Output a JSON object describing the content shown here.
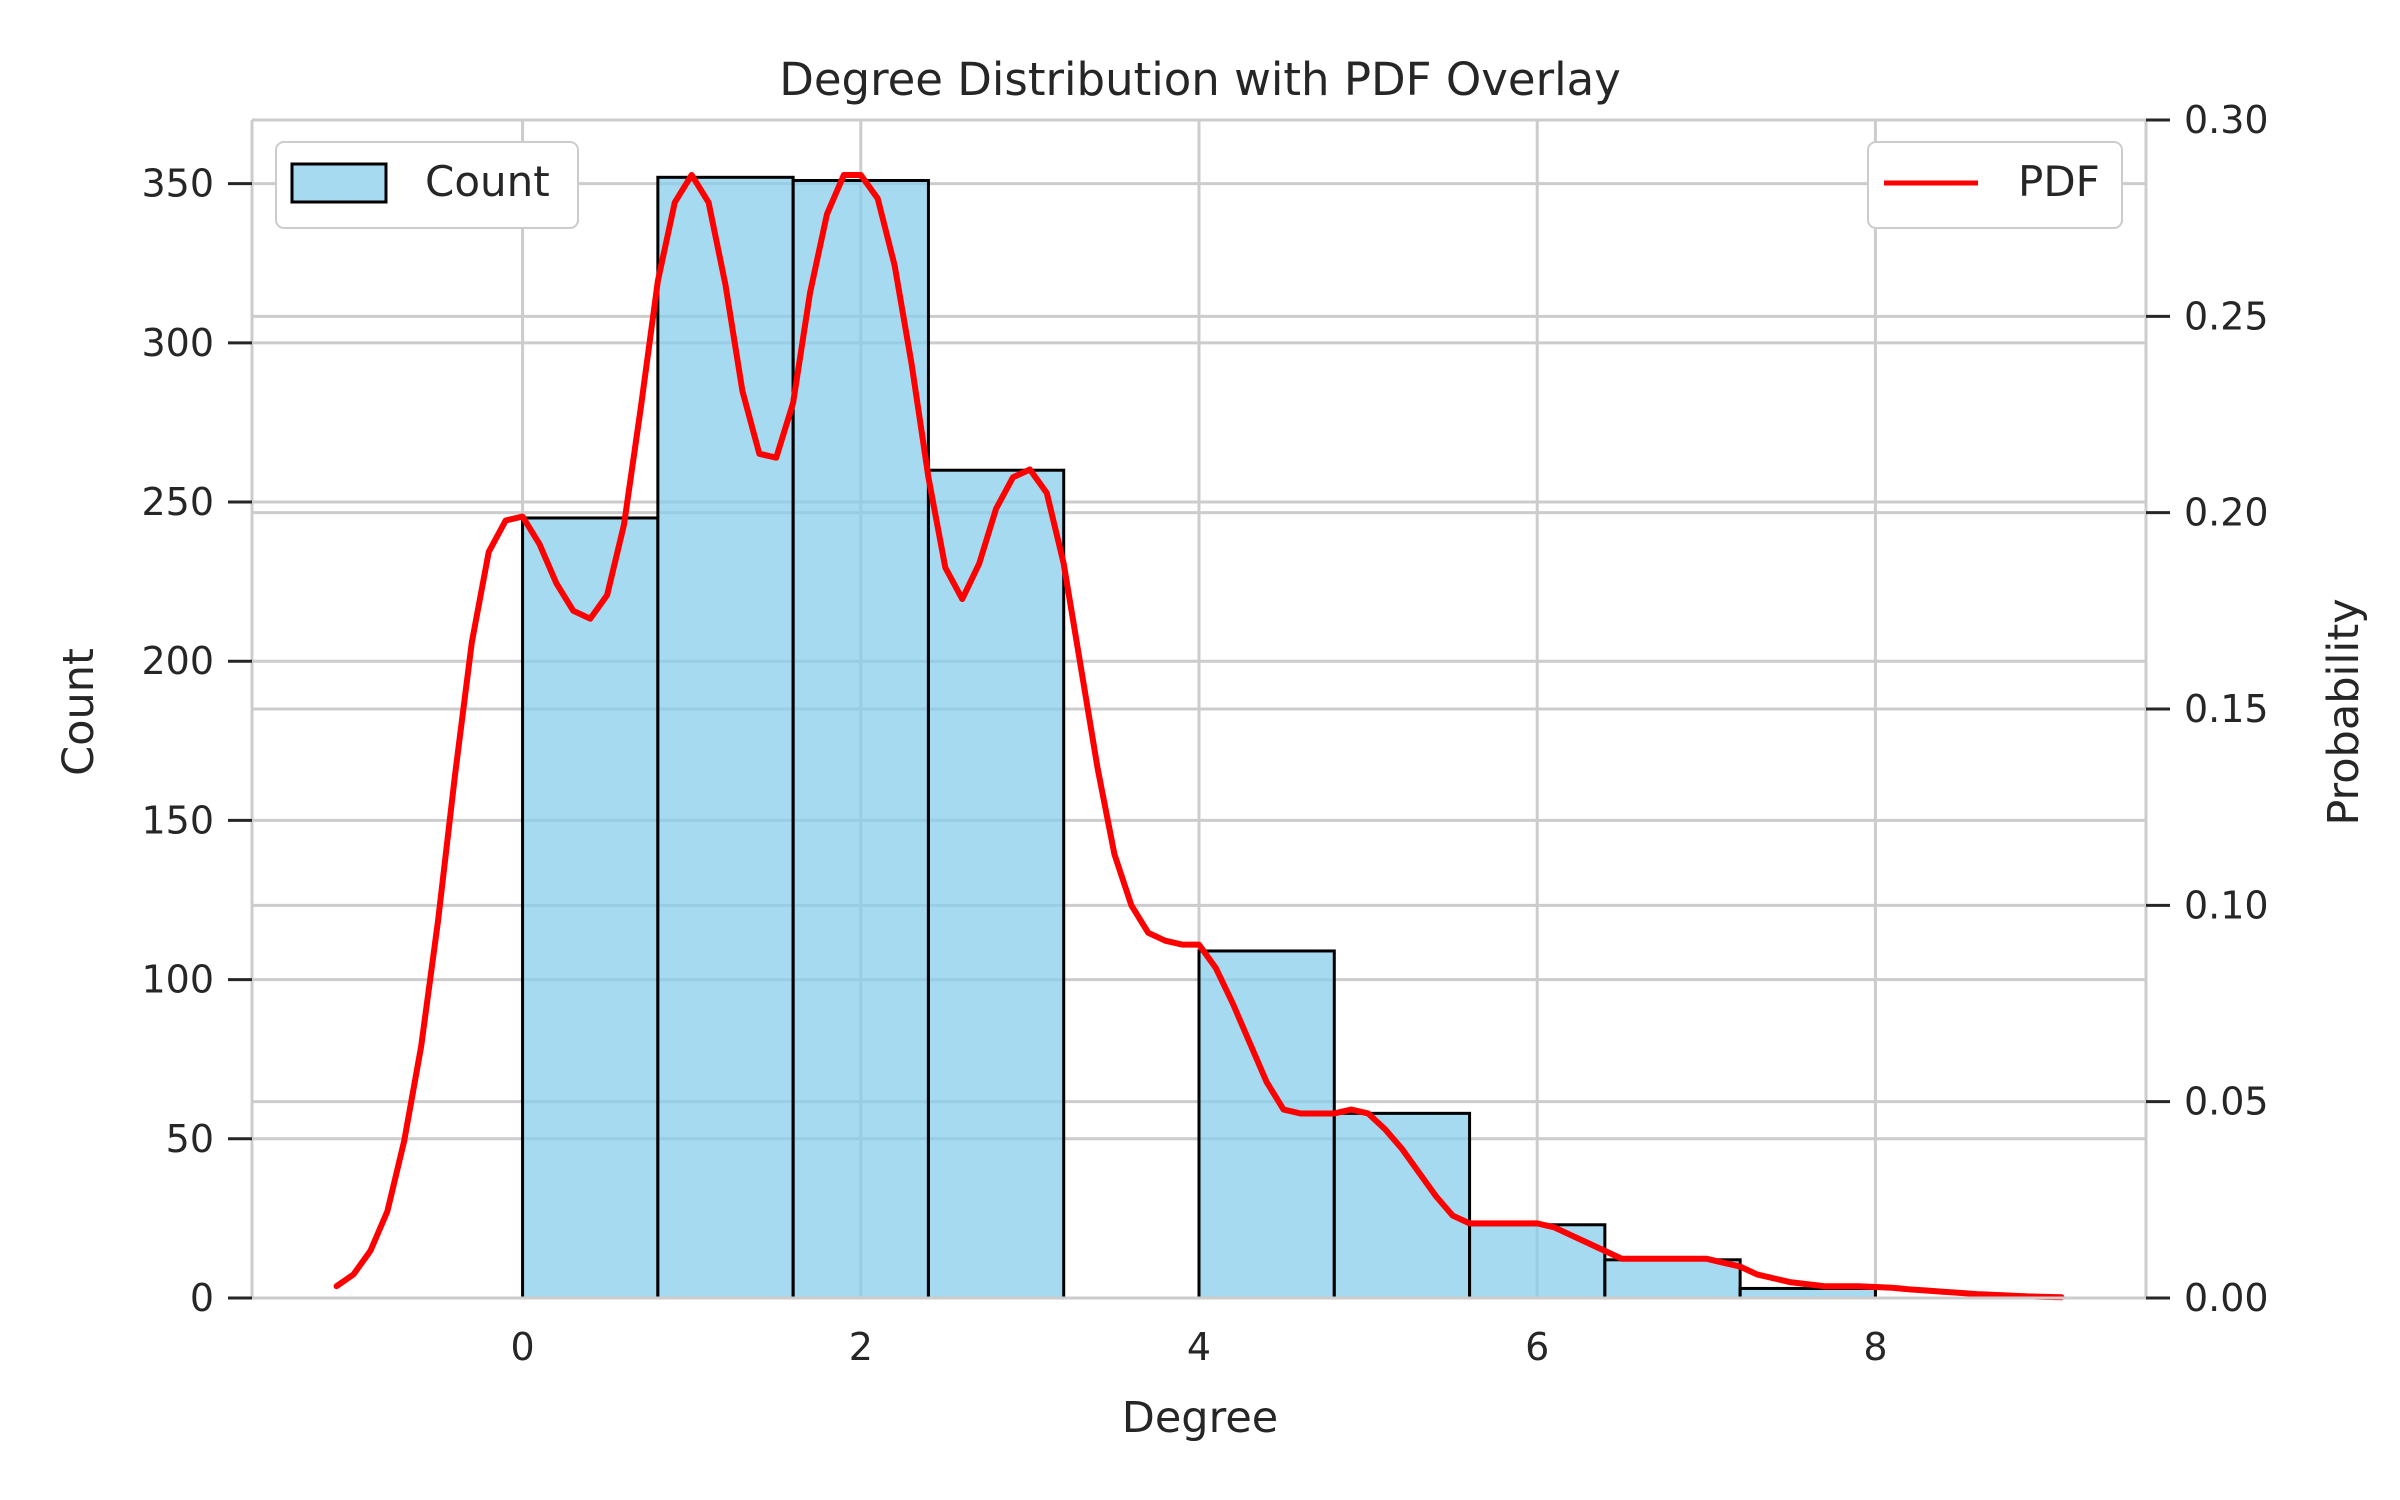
{
  "chart_data": {
    "type": "bar",
    "title": "Degree Distribution with PDF Overlay",
    "xlabel": "Degree",
    "ylabel": "Count",
    "y2label": "Probability",
    "xlim": [
      -1.6,
      9.6
    ],
    "ylim": [
      0,
      370
    ],
    "y2lim": [
      0,
      0.3
    ],
    "x_ticks": [
      0,
      2,
      4,
      6,
      8
    ],
    "y_ticks": [
      0,
      50,
      100,
      150,
      200,
      250,
      300,
      350
    ],
    "y2_ticks": [
      0.0,
      0.05,
      0.1,
      0.15,
      0.2,
      0.25,
      0.3
    ],
    "x_tick_labels": [
      "0",
      "2",
      "4",
      "6",
      "8"
    ],
    "y_tick_labels": [
      "0",
      "50",
      "100",
      "150",
      "200",
      "250",
      "300",
      "350"
    ],
    "y2_tick_labels": [
      "0.00",
      "0.05",
      "0.10",
      "0.15",
      "0.20",
      "0.25",
      "0.30"
    ],
    "grid": true,
    "bins": [
      {
        "start": 0.0,
        "end": 0.8,
        "count": 245
      },
      {
        "start": 0.8,
        "end": 1.6,
        "count": 352
      },
      {
        "start": 1.6,
        "end": 2.4,
        "count": 351
      },
      {
        "start": 2.4,
        "end": 3.2,
        "count": 260
      },
      {
        "start": 3.2,
        "end": 4.0,
        "count": 0
      },
      {
        "start": 4.0,
        "end": 4.8,
        "count": 109
      },
      {
        "start": 4.8,
        "end": 5.6,
        "count": 58
      },
      {
        "start": 5.6,
        "end": 6.4,
        "count": 23
      },
      {
        "start": 6.4,
        "end": 7.2,
        "count": 12
      },
      {
        "start": 7.2,
        "end": 8.0,
        "count": 3
      }
    ],
    "series": [
      {
        "name": "Count",
        "kind": "bar",
        "color": "#87CEEB",
        "edgecolor": "#000000",
        "legend_position": "upper-left"
      },
      {
        "name": "PDF",
        "kind": "line",
        "color": "#FF0000",
        "legend_position": "upper-right",
        "points": [
          [
            -1.1,
            0.003
          ],
          [
            -1.0,
            0.006
          ],
          [
            -0.9,
            0.012
          ],
          [
            -0.8,
            0.022
          ],
          [
            -0.7,
            0.04
          ],
          [
            -0.6,
            0.064
          ],
          [
            -0.5,
            0.096
          ],
          [
            -0.4,
            0.133
          ],
          [
            -0.3,
            0.167
          ],
          [
            -0.2,
            0.19
          ],
          [
            -0.1,
            0.198
          ],
          [
            0.0,
            0.199
          ],
          [
            0.1,
            0.192
          ],
          [
            0.2,
            0.182
          ],
          [
            0.3,
            0.175
          ],
          [
            0.4,
            0.173
          ],
          [
            0.5,
            0.179
          ],
          [
            0.6,
            0.197
          ],
          [
            0.7,
            0.227
          ],
          [
            0.8,
            0.259
          ],
          [
            0.9,
            0.279
          ],
          [
            1.0,
            0.286
          ],
          [
            1.1,
            0.279
          ],
          [
            1.2,
            0.258
          ],
          [
            1.3,
            0.231
          ],
          [
            1.4,
            0.215
          ],
          [
            1.5,
            0.214
          ],
          [
            1.6,
            0.228
          ],
          [
            1.7,
            0.256
          ],
          [
            1.8,
            0.276
          ],
          [
            1.9,
            0.286
          ],
          [
            2.0,
            0.286
          ],
          [
            2.1,
            0.28
          ],
          [
            2.2,
            0.263
          ],
          [
            2.3,
            0.238
          ],
          [
            2.4,
            0.209
          ],
          [
            2.5,
            0.186
          ],
          [
            2.6,
            0.178
          ],
          [
            2.7,
            0.187
          ],
          [
            2.8,
            0.201
          ],
          [
            2.9,
            0.209
          ],
          [
            3.0,
            0.211
          ],
          [
            3.1,
            0.205
          ],
          [
            3.2,
            0.187
          ],
          [
            3.3,
            0.161
          ],
          [
            3.4,
            0.135
          ],
          [
            3.5,
            0.113
          ],
          [
            3.6,
            0.1
          ],
          [
            3.7,
            0.093
          ],
          [
            3.8,
            0.091
          ],
          [
            3.9,
            0.09
          ],
          [
            4.0,
            0.09
          ],
          [
            4.1,
            0.084
          ],
          [
            4.2,
            0.075
          ],
          [
            4.3,
            0.065
          ],
          [
            4.4,
            0.055
          ],
          [
            4.5,
            0.048
          ],
          [
            4.6,
            0.047
          ],
          [
            4.7,
            0.047
          ],
          [
            4.8,
            0.047
          ],
          [
            4.9,
            0.048
          ],
          [
            5.0,
            0.047
          ],
          [
            5.1,
            0.043
          ],
          [
            5.2,
            0.038
          ],
          [
            5.3,
            0.032
          ],
          [
            5.4,
            0.026
          ],
          [
            5.5,
            0.021
          ],
          [
            5.6,
            0.019
          ],
          [
            5.7,
            0.019
          ],
          [
            5.8,
            0.019
          ],
          [
            5.9,
            0.019
          ],
          [
            6.0,
            0.019
          ],
          [
            6.1,
            0.018
          ],
          [
            6.2,
            0.016
          ],
          [
            6.3,
            0.014
          ],
          [
            6.4,
            0.012
          ],
          [
            6.5,
            0.01
          ],
          [
            6.6,
            0.01
          ],
          [
            6.7,
            0.01
          ],
          [
            6.8,
            0.01
          ],
          [
            6.9,
            0.01
          ],
          [
            7.0,
            0.01
          ],
          [
            7.1,
            0.009
          ],
          [
            7.2,
            0.008
          ],
          [
            7.3,
            0.006
          ],
          [
            7.4,
            0.005
          ],
          [
            7.5,
            0.004
          ],
          [
            7.6,
            0.0035
          ],
          [
            7.7,
            0.003
          ],
          [
            7.8,
            0.003
          ],
          [
            7.9,
            0.003
          ],
          [
            8.0,
            0.0028
          ],
          [
            8.1,
            0.0026
          ],
          [
            8.2,
            0.0022
          ],
          [
            8.3,
            0.0019
          ],
          [
            8.4,
            0.0016
          ],
          [
            8.5,
            0.0013
          ],
          [
            8.6,
            0.001
          ],
          [
            8.7,
            0.0008
          ],
          [
            8.8,
            0.0006
          ],
          [
            8.9,
            0.0004
          ],
          [
            9.0,
            0.0003
          ],
          [
            9.1,
            0.0002
          ]
        ]
      }
    ]
  }
}
